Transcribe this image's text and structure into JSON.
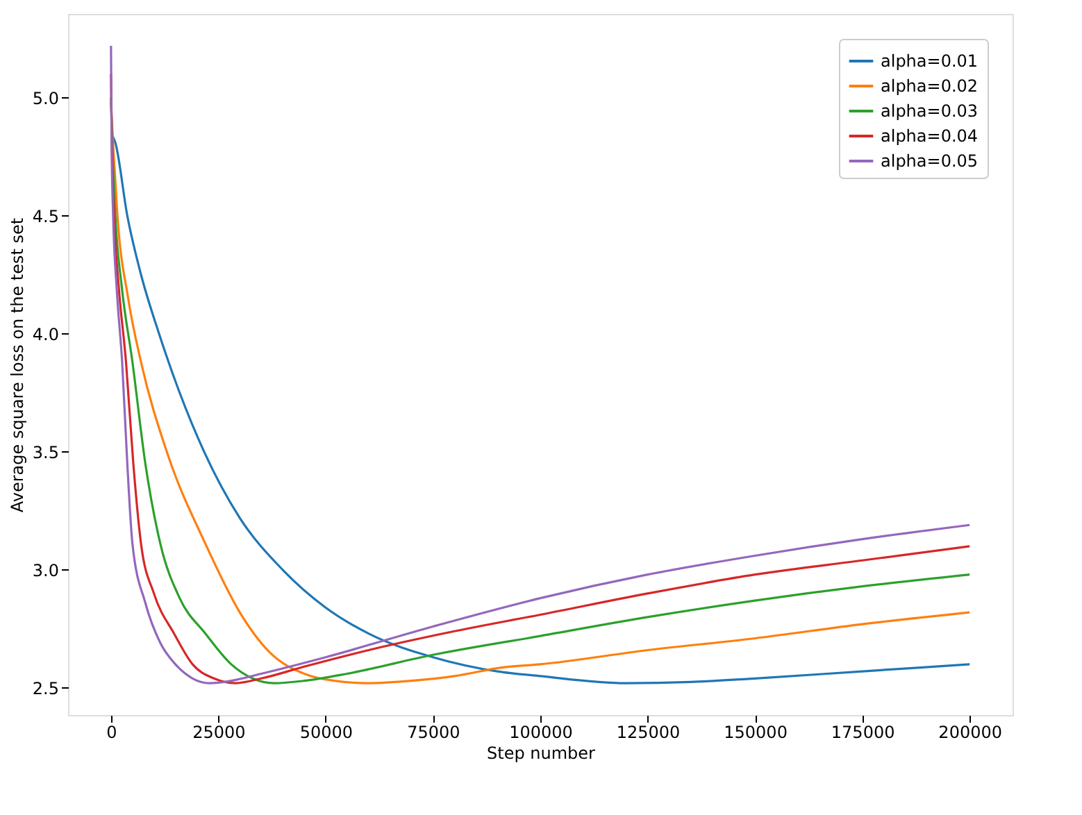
{
  "chart_data": {
    "type": "line",
    "xlabel": "Step number",
    "ylabel": "Average square loss on the test set",
    "xlim": [
      -10000,
      210000
    ],
    "ylim": [
      2.385,
      5.355
    ],
    "xticks": [
      0,
      25000,
      50000,
      75000,
      100000,
      125000,
      150000,
      175000,
      200000
    ],
    "yticks": [
      2.5,
      {
        "value": 3,
        "label": "3.0"
      },
      3.5,
      {
        "value": 4,
        "label": "4.0"
      },
      4.5,
      {
        "value": 5,
        "label": "5.0"
      }
    ],
    "legend": "top right",
    "grid": false,
    "marker": "none",
    "line_style": "solid",
    "series": [
      {
        "name": "alpha=0.01",
        "color": "#1f77b4",
        "x": [
          0,
          1000,
          3800,
          7000,
          11200,
          16000,
          21700,
          30000,
          40000,
          50000,
          60000,
          75000,
          90000,
          100000,
          120000,
          135000,
          150000,
          175000,
          200000
        ],
        "values": [
          4.85,
          4.81,
          4.5,
          4.25,
          4.0,
          3.75,
          3.5,
          3.22,
          3.0,
          2.84,
          2.73,
          2.63,
          2.57,
          2.55,
          2.52,
          2.525,
          2.54,
          2.57,
          2.6
        ]
      },
      {
        "name": "alpha=0.02",
        "color": "#ff7f0e",
        "x": [
          0,
          500,
          1500,
          4000,
          7000,
          13000,
          22000,
          30000,
          37000,
          45000,
          52000,
          60000,
          70000,
          80000,
          91000,
          100000,
          125000,
          150000,
          175000,
          200000
        ],
        "values": [
          4.98,
          4.8,
          4.5,
          4.15,
          3.88,
          3.5,
          3.11,
          2.82,
          2.65,
          2.56,
          2.53,
          2.52,
          2.53,
          2.55,
          2.586,
          2.6,
          2.66,
          2.71,
          2.77,
          2.82
        ]
      },
      {
        "name": "alpha=0.03",
        "color": "#2ca02c",
        "x": [
          0,
          300,
          1000,
          2500,
          5000,
          8000,
          11500,
          16000,
          22000,
          28000,
          33000,
          38000,
          45000,
          55000,
          75000,
          100000,
          125000,
          150000,
          175000,
          200000
        ],
        "values": [
          5.0,
          4.8,
          4.5,
          4.2,
          3.88,
          3.45,
          3.11,
          2.88,
          2.73,
          2.6,
          2.54,
          2.52,
          2.53,
          2.56,
          2.64,
          2.72,
          2.8,
          2.87,
          2.93,
          2.98
        ]
      },
      {
        "name": "alpha=0.04",
        "color": "#d62728",
        "x": [
          0,
          200,
          700,
          1800,
          3500,
          5200,
          7000,
          10000,
          14700,
          19000,
          24000,
          29000,
          35000,
          45000,
          60000,
          80000,
          100000,
          125000,
          150000,
          175000,
          200000
        ],
        "values": [
          5.1,
          4.8,
          4.5,
          4.2,
          3.88,
          3.45,
          3.11,
          2.9,
          2.73,
          2.6,
          2.54,
          2.52,
          2.54,
          2.59,
          2.66,
          2.74,
          2.81,
          2.9,
          2.98,
          3.04,
          3.1
        ]
      },
      {
        "name": "alpha=0.05",
        "color": "#9467bd",
        "x": [
          0,
          150,
          500,
          1300,
          2600,
          3800,
          5000,
          8000,
          11500,
          15000,
          19000,
          23000,
          28000,
          35000,
          50000,
          75000,
          100000,
          125000,
          150000,
          175000,
          200000
        ],
        "values": [
          5.22,
          4.8,
          4.5,
          4.2,
          3.88,
          3.45,
          3.11,
          2.86,
          2.69,
          2.6,
          2.54,
          2.52,
          2.53,
          2.56,
          2.63,
          2.76,
          2.88,
          2.98,
          3.06,
          3.13,
          3.19
        ]
      }
    ]
  }
}
